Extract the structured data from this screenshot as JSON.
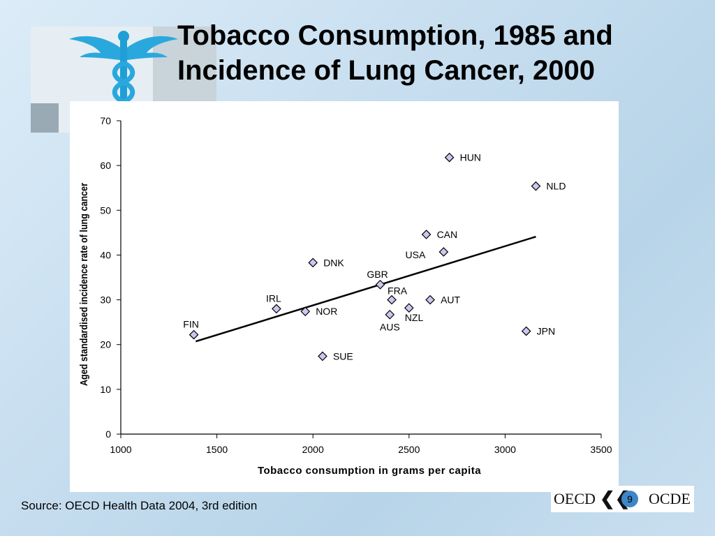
{
  "slide": {
    "title_line1": "Tobacco Consumption, 1985 and",
    "title_line2": "Incidence of Lung Cancer, 2000",
    "source": "Source: OECD Health Data 2004, 3rd edition",
    "page_number": "9",
    "footer_logo_left": "OECD",
    "footer_logo_right": "OCDE"
  },
  "chart_data": {
    "type": "scatter",
    "title": "",
    "xlabel": "Tobacco consumption in grams per capita",
    "ylabel": "Aged standardised incidence rate of lung cancer",
    "xlim": [
      1000,
      3500
    ],
    "ylim": [
      0,
      70
    ],
    "xticks": [
      1000,
      1500,
      2000,
      2500,
      3000,
      3500
    ],
    "yticks": [
      0,
      10,
      20,
      30,
      40,
      50,
      60,
      70
    ],
    "grid": false,
    "marker": "diamond",
    "marker_color": "#c8c8f0",
    "trendline": {
      "x": [
        1390,
        3160
      ],
      "y": [
        20.7,
        44.1
      ]
    },
    "points": [
      {
        "label": "FIN",
        "x": 1380,
        "y": 22.2,
        "label_pos": "above"
      },
      {
        "label": "IRL",
        "x": 1810,
        "y": 28.0,
        "label_pos": "above"
      },
      {
        "label": "NOR",
        "x": 1960,
        "y": 27.4,
        "label_pos": "right"
      },
      {
        "label": "DNK",
        "x": 2000,
        "y": 38.3,
        "label_pos": "right"
      },
      {
        "label": "SUE",
        "x": 2050,
        "y": 17.4,
        "label_pos": "right"
      },
      {
        "label": "GBR",
        "x": 2350,
        "y": 33.4,
        "label_pos": "above"
      },
      {
        "label": "AUS",
        "x": 2400,
        "y": 26.7,
        "label_pos": "below"
      },
      {
        "label": "FRA",
        "x": 2410,
        "y": 30.0,
        "label_pos": "above-right"
      },
      {
        "label": "NZL",
        "x": 2500,
        "y": 28.2,
        "label_pos": "below-right"
      },
      {
        "label": "CAN",
        "x": 2590,
        "y": 44.6,
        "label_pos": "right"
      },
      {
        "label": "AUT",
        "x": 2610,
        "y": 30.0,
        "label_pos": "right"
      },
      {
        "label": "USA",
        "x": 2680,
        "y": 40.7,
        "label_pos": "left"
      },
      {
        "label": "HUN",
        "x": 2710,
        "y": 61.8,
        "label_pos": "right"
      },
      {
        "label": "JPN",
        "x": 3110,
        "y": 23.0,
        "label_pos": "right"
      },
      {
        "label": "NLD",
        "x": 3160,
        "y": 55.4,
        "label_pos": "right"
      }
    ]
  }
}
